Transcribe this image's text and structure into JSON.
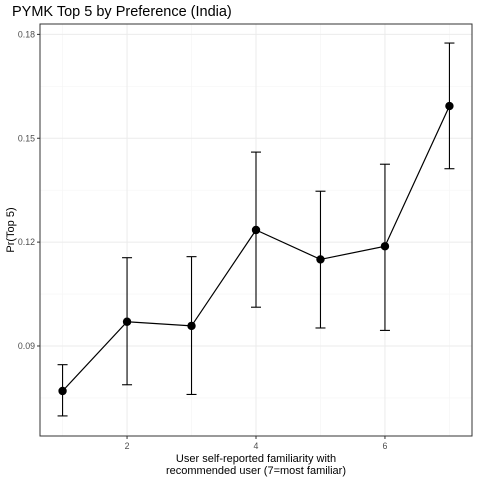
{
  "chart_data": {
    "type": "line",
    "title": "PYMK Top 5 by Preference (India)",
    "xlabel_lines": [
      "User self-reported familiarity with",
      "recommended user (7=most familiar)"
    ],
    "ylabel": "Pr(Top 5)",
    "x": [
      1,
      2,
      3,
      4,
      5,
      6,
      7
    ],
    "y": [
      0.077,
      0.097,
      0.0958,
      0.1235,
      0.115,
      0.1188,
      0.1593
    ],
    "err_low": [
      0.0698,
      0.0788,
      0.076,
      0.1012,
      0.0952,
      0.0945,
      0.1412
    ],
    "err_high": [
      0.0846,
      0.1155,
      0.1158,
      0.146,
      0.1347,
      0.1425,
      0.1775
    ],
    "xlim": [
      0.65,
      7.35
    ],
    "ylim": [
      0.064,
      0.183
    ],
    "x_ticks": [
      2,
      4,
      6
    ],
    "x_tick_labels": [
      "2",
      "4",
      "6"
    ],
    "y_ticks": [
      0.09,
      0.12,
      0.15,
      0.18
    ],
    "y_tick_labels": [
      "0.09",
      "0.12",
      "0.15",
      "0.18"
    ],
    "grid": true,
    "colors": {
      "line": "#000000",
      "grid_major": "#ebebeb",
      "grid_minor": "#f5f5f5",
      "panel_border": "#333333"
    }
  }
}
